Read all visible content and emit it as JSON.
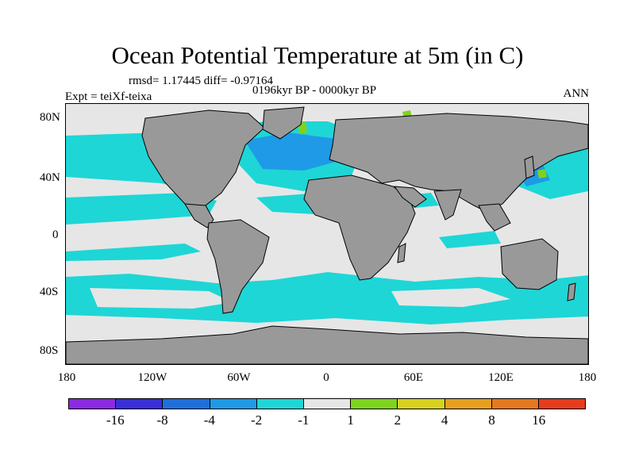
{
  "title": "Ocean Potential Temperature at 5m (in C)",
  "rmsd_line": "rmsd= 1.17445  diff= -0.97164",
  "subtitle": "0196kyr BP - 0000kyr BP",
  "experiment": "Expt = teiXf-teixa",
  "season": "ANN",
  "map": {
    "ocean_color": "#e6e6e6",
    "land_color": "#999999",
    "y_ticks": [
      "80N",
      "40N",
      "0",
      "40S",
      "80S"
    ],
    "x_ticks": [
      "180",
      "120W",
      "60W",
      "0",
      "60E",
      "120E",
      "180"
    ]
  },
  "colorbar": {
    "colors": [
      "#8a2be2",
      "#3a2ed6",
      "#1e6fdc",
      "#1e9ae6",
      "#1ed6d6",
      "#e6e6e6",
      "#7fd21e",
      "#d6d21e",
      "#e6a01e",
      "#e6781e",
      "#e63c1e"
    ],
    "labels": [
      "-16",
      "-8",
      "-4",
      "-2",
      "-1",
      "1",
      "2",
      "4",
      "8",
      "16"
    ]
  }
}
